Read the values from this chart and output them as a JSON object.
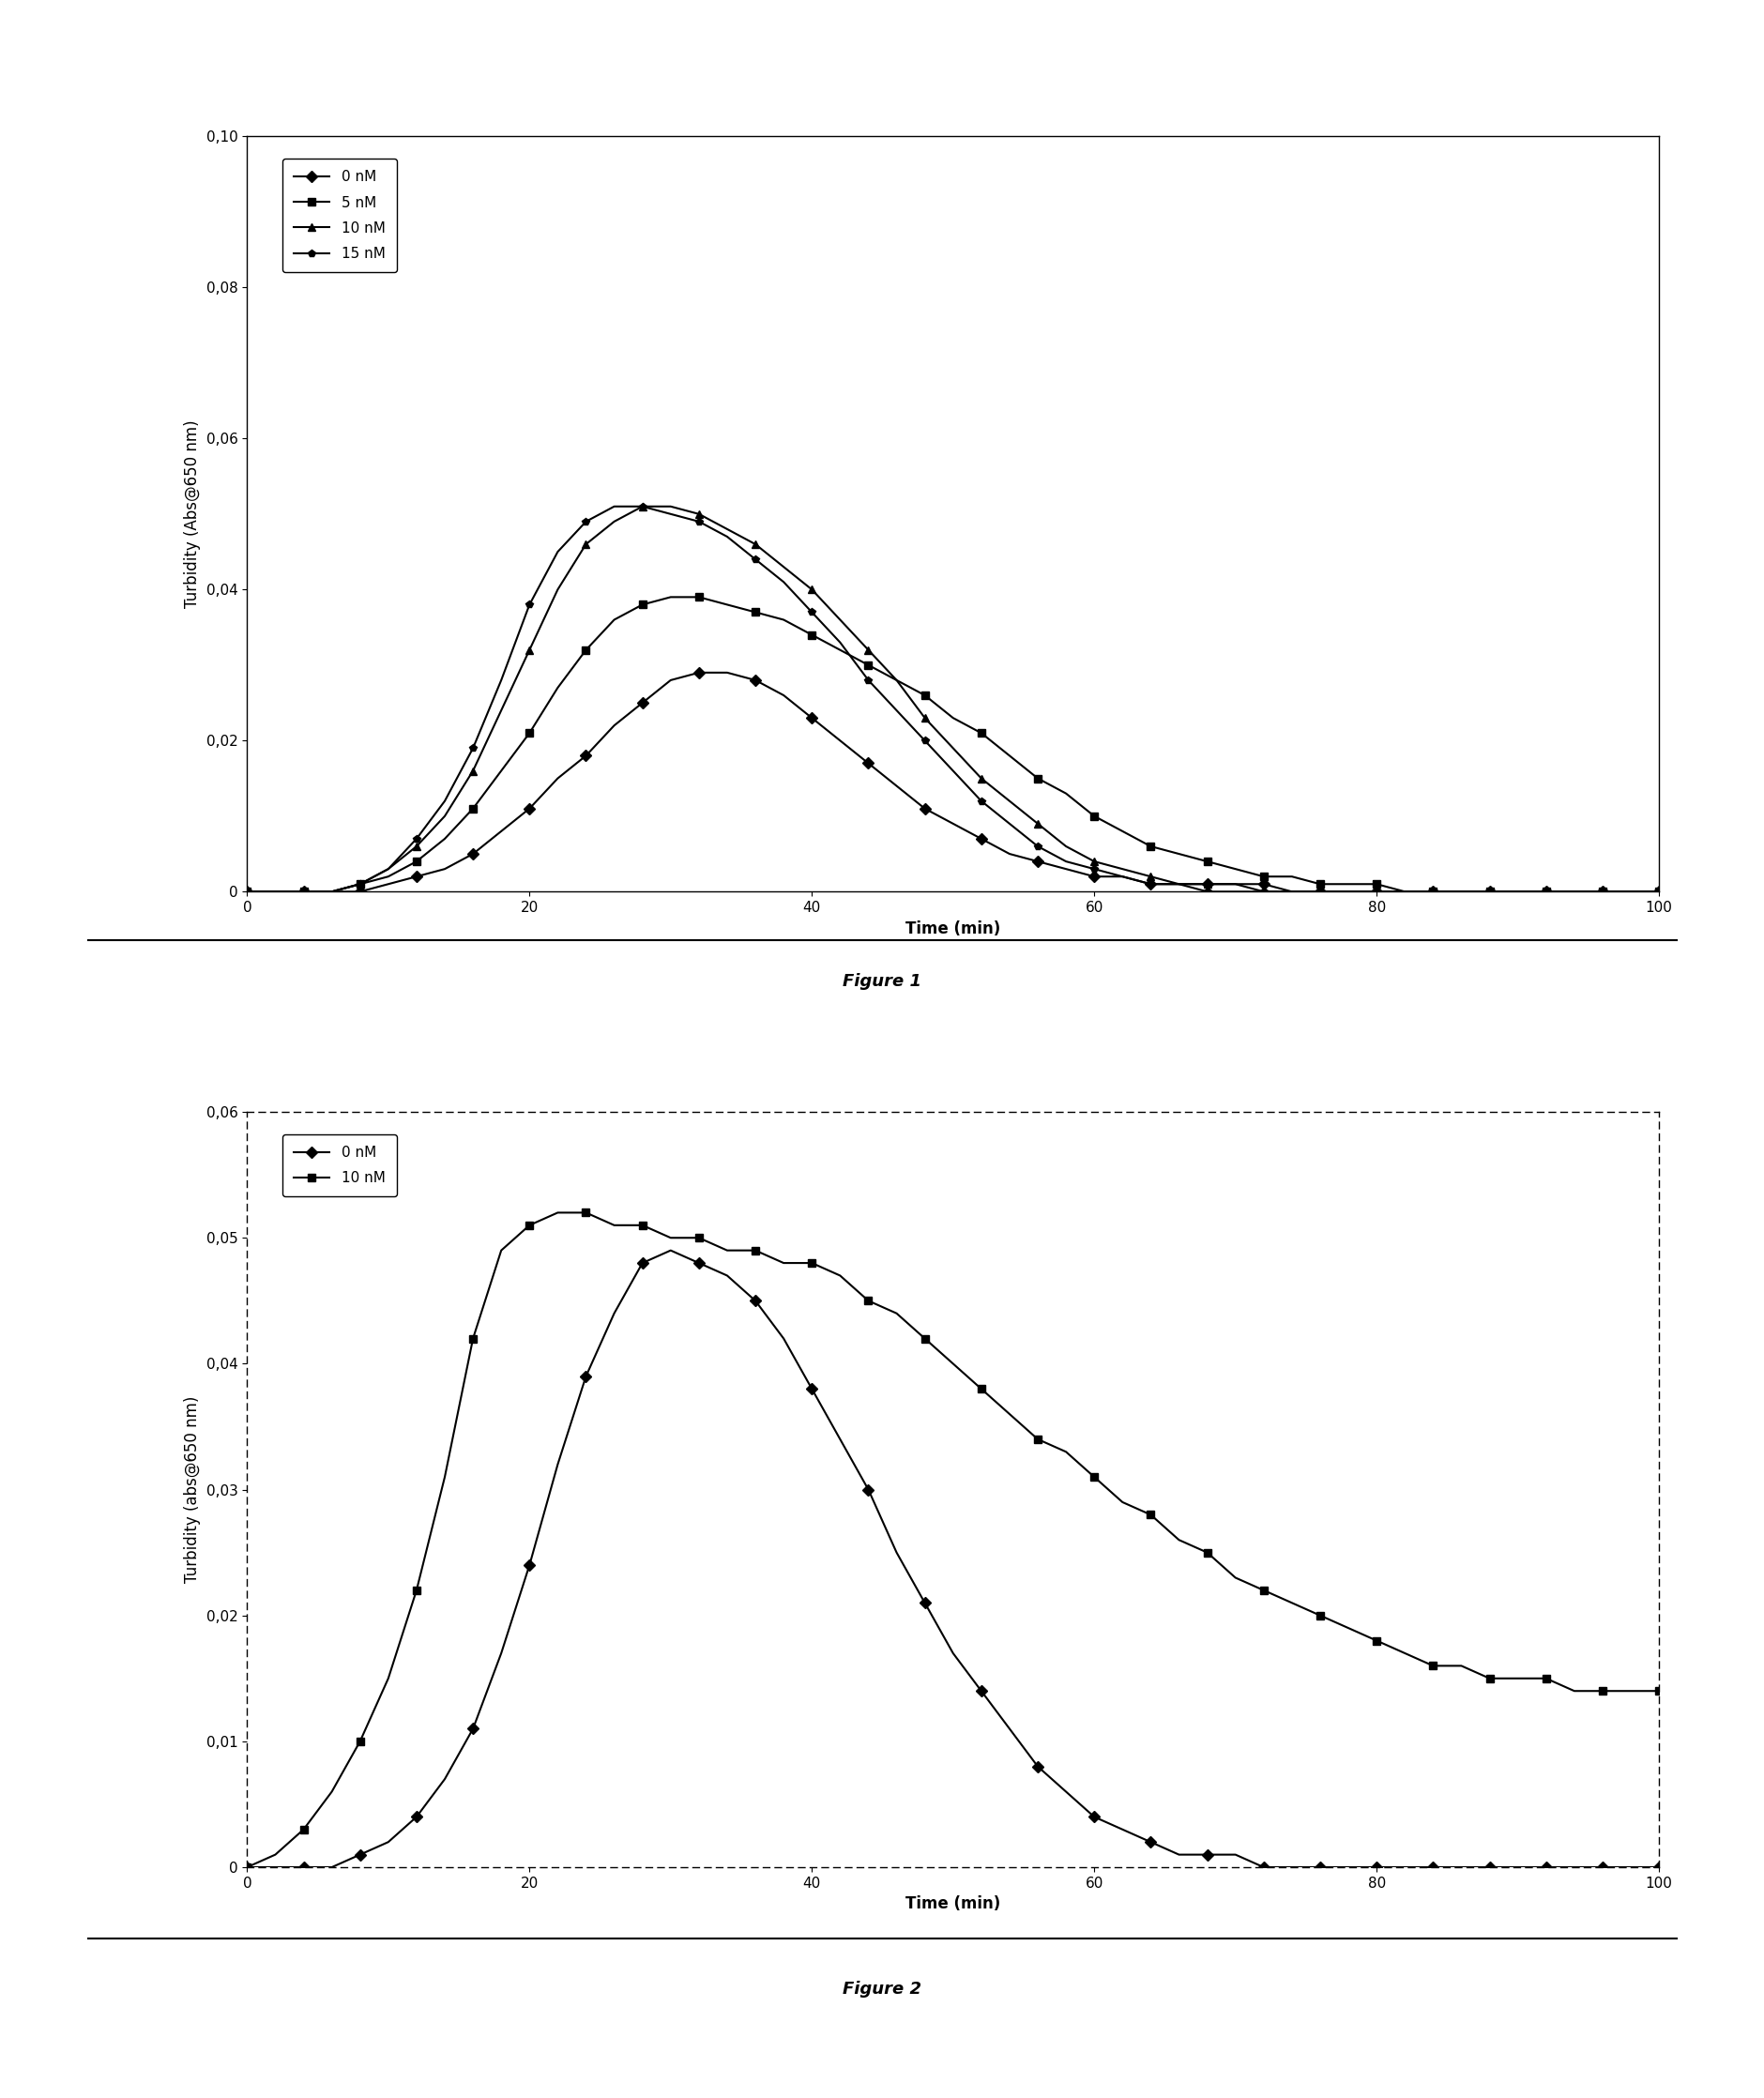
{
  "fig1": {
    "ylabel": "Turbidity (Abs@650 nm)",
    "xlabel": "Time (min)",
    "xlim": [
      0,
      100
    ],
    "ylim": [
      0,
      0.1
    ],
    "yticks": [
      0,
      0.02,
      0.04,
      0.06,
      0.08,
      0.1
    ],
    "xticks": [
      0,
      20,
      40,
      60,
      80,
      100
    ],
    "series": [
      {
        "label": "0 nM",
        "marker": "D",
        "x": [
          0,
          2,
          4,
          6,
          8,
          10,
          12,
          14,
          16,
          18,
          20,
          22,
          24,
          26,
          28,
          30,
          32,
          34,
          36,
          38,
          40,
          42,
          44,
          46,
          48,
          50,
          52,
          54,
          56,
          58,
          60,
          62,
          64,
          66,
          68,
          70,
          72,
          74,
          76,
          78,
          80,
          82,
          84,
          86,
          88,
          90,
          92,
          94,
          96,
          98,
          100
        ],
        "y": [
          0,
          0,
          0,
          0,
          0,
          0.001,
          0.002,
          0.003,
          0.005,
          0.008,
          0.011,
          0.015,
          0.018,
          0.022,
          0.025,
          0.028,
          0.029,
          0.029,
          0.028,
          0.026,
          0.023,
          0.02,
          0.017,
          0.014,
          0.011,
          0.009,
          0.007,
          0.005,
          0.004,
          0.003,
          0.002,
          0.002,
          0.001,
          0.001,
          0.001,
          0.001,
          0.001,
          0,
          0,
          0,
          0,
          0,
          0,
          0,
          0,
          0,
          0,
          0,
          0,
          0,
          0
        ]
      },
      {
        "label": "5 nM",
        "marker": "s",
        "x": [
          0,
          2,
          4,
          6,
          8,
          10,
          12,
          14,
          16,
          18,
          20,
          22,
          24,
          26,
          28,
          30,
          32,
          34,
          36,
          38,
          40,
          42,
          44,
          46,
          48,
          50,
          52,
          54,
          56,
          58,
          60,
          62,
          64,
          66,
          68,
          70,
          72,
          74,
          76,
          78,
          80,
          82,
          84,
          86,
          88,
          90,
          92,
          94,
          96,
          98,
          100
        ],
        "y": [
          0,
          0,
          0,
          0,
          0.001,
          0.002,
          0.004,
          0.007,
          0.011,
          0.016,
          0.021,
          0.027,
          0.032,
          0.036,
          0.038,
          0.039,
          0.039,
          0.038,
          0.037,
          0.036,
          0.034,
          0.032,
          0.03,
          0.028,
          0.026,
          0.023,
          0.021,
          0.018,
          0.015,
          0.013,
          0.01,
          0.008,
          0.006,
          0.005,
          0.004,
          0.003,
          0.002,
          0.002,
          0.001,
          0.001,
          0.001,
          0,
          0,
          0,
          0,
          0,
          0,
          0,
          0,
          0,
          0
        ]
      },
      {
        "label": "10 nM",
        "marker": "^",
        "x": [
          0,
          2,
          4,
          6,
          8,
          10,
          12,
          14,
          16,
          18,
          20,
          22,
          24,
          26,
          28,
          30,
          32,
          34,
          36,
          38,
          40,
          42,
          44,
          46,
          48,
          50,
          52,
          54,
          56,
          58,
          60,
          62,
          64,
          66,
          68,
          70,
          72,
          74,
          76,
          78,
          80,
          82,
          84,
          86,
          88,
          90,
          92,
          94,
          96,
          98,
          100
        ],
        "y": [
          0,
          0,
          0,
          0,
          0.001,
          0.003,
          0.006,
          0.01,
          0.016,
          0.024,
          0.032,
          0.04,
          0.046,
          0.049,
          0.051,
          0.051,
          0.05,
          0.048,
          0.046,
          0.043,
          0.04,
          0.036,
          0.032,
          0.028,
          0.023,
          0.019,
          0.015,
          0.012,
          0.009,
          0.006,
          0.004,
          0.003,
          0.002,
          0.001,
          0.001,
          0.001,
          0,
          0,
          0,
          0,
          0,
          0,
          0,
          0,
          0,
          0,
          0,
          0,
          0,
          0,
          0
        ]
      },
      {
        "label": "15 nM",
        "marker": "p",
        "x": [
          0,
          2,
          4,
          6,
          8,
          10,
          12,
          14,
          16,
          18,
          20,
          22,
          24,
          26,
          28,
          30,
          32,
          34,
          36,
          38,
          40,
          42,
          44,
          46,
          48,
          50,
          52,
          54,
          56,
          58,
          60,
          62,
          64,
          66,
          68,
          70,
          72,
          74,
          76,
          78,
          80,
          82,
          84,
          86,
          88,
          90,
          92,
          94,
          96,
          98,
          100
        ],
        "y": [
          0,
          0,
          0,
          0,
          0.001,
          0.003,
          0.007,
          0.012,
          0.019,
          0.028,
          0.038,
          0.045,
          0.049,
          0.051,
          0.051,
          0.05,
          0.049,
          0.047,
          0.044,
          0.041,
          0.037,
          0.033,
          0.028,
          0.024,
          0.02,
          0.016,
          0.012,
          0.009,
          0.006,
          0.004,
          0.003,
          0.002,
          0.001,
          0.001,
          0,
          0,
          0,
          0,
          0,
          0,
          0,
          0,
          0,
          0,
          0,
          0,
          0,
          0,
          0,
          0,
          0
        ]
      }
    ]
  },
  "fig2": {
    "ylabel": "Turbidity (abs@650 nm)",
    "xlabel": "Time (min)",
    "xlim": [
      0,
      100
    ],
    "ylim": [
      0,
      0.06
    ],
    "yticks": [
      0,
      0.01,
      0.02,
      0.03,
      0.04,
      0.05,
      0.06
    ],
    "xticks": [
      0,
      20,
      40,
      60,
      80,
      100
    ],
    "series": [
      {
        "label": "0 nM",
        "marker": "D",
        "x": [
          0,
          2,
          4,
          6,
          8,
          10,
          12,
          14,
          16,
          18,
          20,
          22,
          24,
          26,
          28,
          30,
          32,
          34,
          36,
          38,
          40,
          42,
          44,
          46,
          48,
          50,
          52,
          54,
          56,
          58,
          60,
          62,
          64,
          66,
          68,
          70,
          72,
          74,
          76,
          78,
          80,
          82,
          84,
          86,
          88,
          90,
          92,
          94,
          96,
          98,
          100
        ],
        "y": [
          0,
          0,
          0,
          0,
          0.001,
          0.002,
          0.004,
          0.007,
          0.011,
          0.017,
          0.024,
          0.032,
          0.039,
          0.044,
          0.048,
          0.049,
          0.048,
          0.047,
          0.045,
          0.042,
          0.038,
          0.034,
          0.03,
          0.025,
          0.021,
          0.017,
          0.014,
          0.011,
          0.008,
          0.006,
          0.004,
          0.003,
          0.002,
          0.001,
          0.001,
          0.001,
          0,
          0,
          0,
          0,
          0,
          0,
          0,
          0,
          0,
          0,
          0,
          0,
          0,
          0,
          0
        ]
      },
      {
        "label": "10 nM",
        "marker": "s",
        "x": [
          0,
          2,
          4,
          6,
          8,
          10,
          12,
          14,
          16,
          18,
          20,
          22,
          24,
          26,
          28,
          30,
          32,
          34,
          36,
          38,
          40,
          42,
          44,
          46,
          48,
          50,
          52,
          54,
          56,
          58,
          60,
          62,
          64,
          66,
          68,
          70,
          72,
          74,
          76,
          78,
          80,
          82,
          84,
          86,
          88,
          90,
          92,
          94,
          96,
          98,
          100
        ],
        "y": [
          0,
          0.001,
          0.003,
          0.006,
          0.01,
          0.015,
          0.022,
          0.031,
          0.042,
          0.049,
          0.051,
          0.052,
          0.052,
          0.051,
          0.051,
          0.05,
          0.05,
          0.049,
          0.049,
          0.048,
          0.048,
          0.047,
          0.045,
          0.044,
          0.042,
          0.04,
          0.038,
          0.036,
          0.034,
          0.033,
          0.031,
          0.029,
          0.028,
          0.026,
          0.025,
          0.023,
          0.022,
          0.021,
          0.02,
          0.019,
          0.018,
          0.017,
          0.016,
          0.016,
          0.015,
          0.015,
          0.015,
          0.014,
          0.014,
          0.014,
          0.014
        ]
      }
    ]
  },
  "fig1_label": "Figure 1",
  "fig2_label": "Figure 2",
  "fig_label_fontsize": 13,
  "axis_label_fontsize": 12,
  "tick_fontsize": 11,
  "legend_fontsize": 11,
  "marker_size": 6,
  "linewidth": 1.5,
  "background_color": "#ffffff"
}
